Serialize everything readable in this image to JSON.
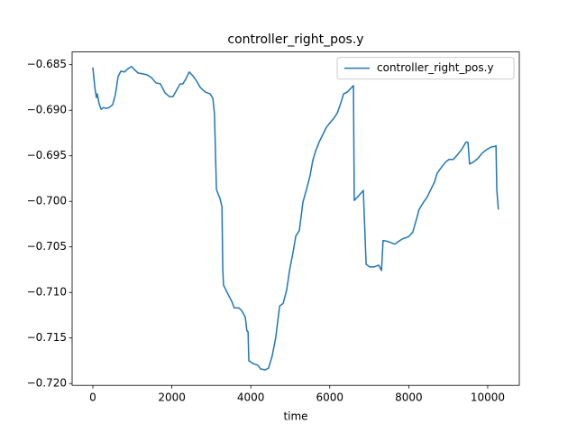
{
  "chart_data": {
    "type": "line",
    "title": "controller_right_pos.y",
    "x_label": "time",
    "x": [
      0,
      50,
      90,
      110,
      160,
      210,
      270,
      340,
      410,
      500,
      570,
      640,
      710,
      800,
      870,
      980,
      1070,
      1140,
      1260,
      1370,
      1480,
      1600,
      1710,
      1830,
      1940,
      2030,
      2120,
      2210,
      2280,
      2350,
      2440,
      2530,
      2630,
      2720,
      2850,
      2970,
      3040,
      3080,
      3130,
      3220,
      3270,
      3290,
      3310,
      3400,
      3520,
      3580,
      3700,
      3770,
      3860,
      3900,
      3930,
      3950,
      4060,
      4180,
      4250,
      4360,
      4450,
      4540,
      4630,
      4730,
      4820,
      4910,
      4980,
      5070,
      5140,
      5230,
      5320,
      5410,
      5500,
      5570,
      5640,
      5730,
      5820,
      5910,
      6000,
      6100,
      6190,
      6280,
      6350,
      6440,
      6510,
      6600,
      6620,
      6730,
      6850,
      6920,
      7010,
      7120,
      7240,
      7310,
      7350,
      7470,
      7650,
      7740,
      7850,
      7990,
      8100,
      8200,
      8260,
      8360,
      8470,
      8560,
      8650,
      8720,
      8840,
      8930,
      9020,
      9130,
      9250,
      9340,
      9450,
      9500,
      9540,
      9630,
      9750,
      9860,
      9980,
      10110,
      10160,
      10210,
      10230,
      10270
    ],
    "series": [
      {
        "name": "controller_right_pos.y",
        "color": "#1f77b4",
        "values": [
          -0.6853,
          -0.6875,
          -0.6886,
          -0.6882,
          -0.6893,
          -0.6899,
          -0.6897,
          -0.6898,
          -0.6897,
          -0.6894,
          -0.6883,
          -0.6863,
          -0.6857,
          -0.6858,
          -0.6855,
          -0.6852,
          -0.6856,
          -0.6859,
          -0.686,
          -0.6861,
          -0.6864,
          -0.687,
          -0.6871,
          -0.6881,
          -0.6885,
          -0.6885,
          -0.6878,
          -0.6871,
          -0.6871,
          -0.6866,
          -0.6858,
          -0.6862,
          -0.6868,
          -0.6875,
          -0.688,
          -0.6882,
          -0.6887,
          -0.6904,
          -0.6987,
          -0.6997,
          -0.7006,
          -0.7075,
          -0.7092,
          -0.71,
          -0.711,
          -0.7117,
          -0.7117,
          -0.712,
          -0.7127,
          -0.7142,
          -0.7143,
          -0.7175,
          -0.7178,
          -0.718,
          -0.7184,
          -0.7185,
          -0.7183,
          -0.717,
          -0.715,
          -0.7115,
          -0.7112,
          -0.7097,
          -0.7076,
          -0.7056,
          -0.7038,
          -0.7032,
          -0.7001,
          -0.6987,
          -0.6972,
          -0.6955,
          -0.6945,
          -0.6935,
          -0.6927,
          -0.6919,
          -0.6914,
          -0.6909,
          -0.6903,
          -0.6892,
          -0.6882,
          -0.688,
          -0.6877,
          -0.6873,
          -0.6999,
          -0.6994,
          -0.6988,
          -0.7069,
          -0.7072,
          -0.7072,
          -0.707,
          -0.7076,
          -0.7043,
          -0.7044,
          -0.7047,
          -0.7044,
          -0.7041,
          -0.7039,
          -0.7034,
          -0.7019,
          -0.7009,
          -0.7002,
          -0.6995,
          -0.6987,
          -0.6979,
          -0.6969,
          -0.6962,
          -0.6957,
          -0.6954,
          -0.6954,
          -0.6948,
          -0.6943,
          -0.6935,
          -0.6935,
          -0.6959,
          -0.6957,
          -0.6953,
          -0.6947,
          -0.6943,
          -0.694,
          -0.694,
          -0.6939,
          -0.6987,
          -0.7009
        ]
      }
    ],
    "xlim": [
      -525,
      10800
    ],
    "xticks": [
      0,
      2000,
      4000,
      6000,
      8000,
      10000
    ],
    "ylim": [
      -0.7202,
      -0.6836
    ],
    "yticks": [
      {
        "value": -0.685,
        "label": "−0.685"
      },
      {
        "value": -0.69,
        "label": "−0.690"
      },
      {
        "value": -0.695,
        "label": "−0.695"
      },
      {
        "value": -0.7,
        "label": "−0.700"
      },
      {
        "value": -0.705,
        "label": "−0.705"
      },
      {
        "value": -0.71,
        "label": "−0.710"
      },
      {
        "value": -0.715,
        "label": "−0.715"
      },
      {
        "value": -0.72,
        "label": "−0.720"
      }
    ],
    "legend": "upper right",
    "grid": false
  }
}
